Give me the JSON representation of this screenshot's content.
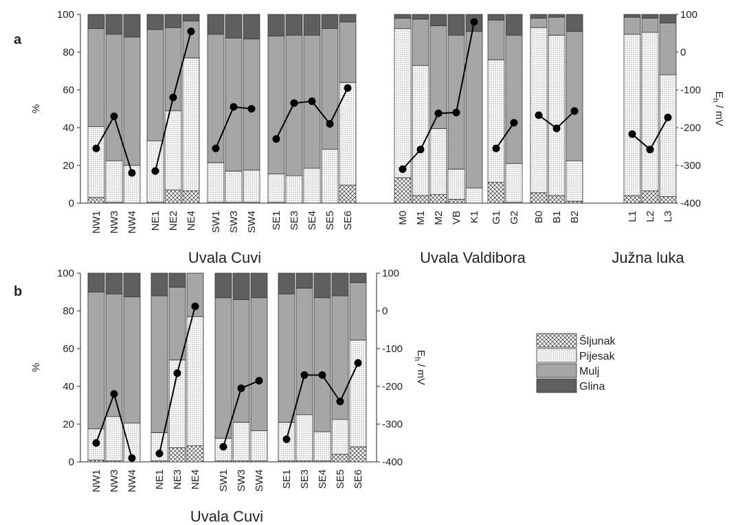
{
  "legend": {
    "position": "right of panel b",
    "items": [
      {
        "name": "Šljunak",
        "pattern": "crosshatch"
      },
      {
        "name": "Pijesak",
        "pattern": "dots"
      },
      {
        "name": "Mulj",
        "pattern": "solid",
        "color": "#a6a6a6"
      },
      {
        "name": "Glina",
        "pattern": "solid",
        "color": "#5f5f5f"
      }
    ]
  },
  "colors": {
    "mulj": "#a6a6a6",
    "glina": "#5f5f5f",
    "line": "#000000"
  },
  "chart_data": [
    {
      "type": "bar",
      "panel_label": "a",
      "stacked": true,
      "ylabel": "%",
      "ylim": [
        0,
        100
      ],
      "yticks": [
        "0",
        "20",
        "40",
        "60",
        "80",
        "100"
      ],
      "y2label": "E",
      "y2label_sub": "h",
      "y2label_rest": " / mV",
      "y2lim": [
        -400,
        100
      ],
      "y2ticks": [
        "-400",
        "-300",
        "-200",
        "-100",
        "0",
        "100"
      ],
      "line_series_name": "Eh",
      "groups": [
        {
          "label": "Uvala Cuvi",
          "subgroups": [
            {
              "categories": [
                "NW1",
                "NW3",
                "NW4"
              ],
              "sljunak": [
                3,
                0.5,
                0
              ],
              "pijesak": [
                37.5,
                22,
                20
              ],
              "mulj": [
                52,
                67,
                68
              ],
              "glina": [
                7.5,
                10.5,
                12
              ],
              "eh": [
                -255,
                -170,
                -320
              ]
            },
            {
              "categories": [
                "NE1",
                "NE2",
                "NE4"
              ],
              "sljunak": [
                0.5,
                7,
                6.5
              ],
              "pijesak": [
                32.5,
                42,
                70.5
              ],
              "mulj": [
                59,
                44,
                19.5
              ],
              "glina": [
                8,
                7,
                3.5
              ],
              "eh": [
                -315,
                -120,
                55
              ]
            },
            {
              "categories": [
                "SW1",
                "SW3",
                "SW4"
              ],
              "sljunak": [
                0.5,
                0.5,
                0.5
              ],
              "pijesak": [
                21,
                16.5,
                17
              ],
              "mulj": [
                68,
                70.5,
                69.5
              ],
              "glina": [
                10.5,
                12.5,
                13
              ],
              "eh": [
                -255,
                -145,
                -150
              ]
            },
            {
              "categories": [
                "SE1",
                "SE3",
                "SE4",
                "SE5",
                "SE6"
              ],
              "sljunak": [
                0.5,
                0,
                0,
                0,
                9.5
              ],
              "pijesak": [
                15,
                14.5,
                18.5,
                28.5,
                54.5
              ],
              "mulj": [
                73,
                74.5,
                70.5,
                64,
                32
              ],
              "glina": [
                11.5,
                11,
                11,
                7.5,
                4
              ],
              "eh": [
                -230,
                -135,
                -130,
                -190,
                -95
              ]
            }
          ]
        },
        {
          "label": "Uvala Valdibora",
          "subgroups": [
            {
              "categories": [
                "M0",
                "M1",
                "M2",
                "VB",
                "K1"
              ],
              "sljunak": [
                13.5,
                4,
                4.5,
                2,
                0
              ],
              "pijesak": [
                79,
                69,
                35,
                16,
                8
              ],
              "mulj": [
                5.5,
                24.5,
                54.5,
                71,
                83
              ],
              "glina": [
                2,
                2.5,
                6,
                11,
                9
              ],
              "eh": [
                -310,
                -258,
                -162,
                -160,
                80
              ]
            },
            {
              "categories": [
                "G1",
                "G2"
              ],
              "sljunak": [
                11,
                0.5
              ],
              "pijesak": [
                65,
                20.5
              ],
              "mulj": [
                21,
                68
              ],
              "glina": [
                3,
                11
              ],
              "eh": [
                -255,
                -187
              ]
            },
            {
              "categories": [
                "B0",
                "B1",
                "B2"
              ],
              "sljunak": [
                5.5,
                4,
                1
              ],
              "pijesak": [
                87.5,
                85,
                21.5
              ],
              "mulj": [
                5,
                9.5,
                68.5
              ],
              "glina": [
                2,
                1.5,
                9
              ],
              "eh": [
                -167,
                -202,
                -156
              ]
            }
          ]
        },
        {
          "label": "Južna luka",
          "subgroups": [
            {
              "categories": [
                "L1",
                "L2",
                "L3"
              ],
              "sljunak": [
                4,
                6.5,
                3.5
              ],
              "pijesak": [
                85.5,
                84,
                64.5
              ],
              "mulj": [
                9,
                7.5,
                27.5
              ],
              "glina": [
                1.5,
                2,
                4.5
              ],
              "eh": [
                -217,
                -258,
                -173
              ]
            }
          ]
        }
      ]
    },
    {
      "type": "bar",
      "panel_label": "b",
      "stacked": true,
      "ylabel": "%",
      "ylim": [
        0,
        100
      ],
      "yticks": [
        "0",
        "20",
        "40",
        "60",
        "80",
        "100"
      ],
      "y2label": "E",
      "y2label_sub": "h",
      "y2label_rest": " / mV",
      "y2lim": [
        -400,
        100
      ],
      "y2ticks": [
        "-400",
        "-300",
        "-200",
        "-100",
        "0",
        "100"
      ],
      "line_series_name": "Eh",
      "groups": [
        {
          "label": "Uvala Cuvi",
          "subgroups": [
            {
              "categories": [
                "NW1",
                "NW3",
                "NW4"
              ],
              "sljunak": [
                1,
                0.5,
                0
              ],
              "pijesak": [
                16.5,
                23.5,
                20.5
              ],
              "mulj": [
                72.5,
                65,
                67
              ],
              "glina": [
                10,
                11,
                12.5
              ],
              "eh": [
                -350,
                -220,
                -390
              ]
            },
            {
              "categories": [
                "NE1",
                "NE3",
                "NE4"
              ],
              "sljunak": [
                0.5,
                7.5,
                8.5
              ],
              "pijesak": [
                15,
                46.5,
                68.5
              ],
              "mulj": [
                72.5,
                38.5,
                23
              ],
              "glina": [
                12,
                7.5,
                0
              ],
              "eh": [
                -378,
                -165,
                12
              ]
            },
            {
              "categories": [
                "SW1",
                "SW3",
                "SW4"
              ],
              "sljunak": [
                0.5,
                0.5,
                0.5
              ],
              "pijesak": [
                12,
                20.5,
                16
              ],
              "mulj": [
                74.5,
                65,
                70.5
              ],
              "glina": [
                13,
                14,
                13
              ],
              "eh": [
                -360,
                -205,
                -185
              ]
            },
            {
              "categories": [
                "SE1",
                "SE3",
                "SE4",
                "SE5",
                "SE6"
              ],
              "sljunak": [
                0.5,
                0.5,
                0.5,
                4,
                8
              ],
              "pijesak": [
                20.5,
                24.5,
                15.5,
                18.5,
                56.5
              ],
              "mulj": [
                68,
                67,
                71,
                65.5,
                30.5
              ],
              "glina": [
                11,
                8,
                13,
                12,
                5
              ],
              "eh": [
                -340,
                -170,
                -170,
                -240,
                -138
              ]
            }
          ]
        }
      ]
    }
  ]
}
